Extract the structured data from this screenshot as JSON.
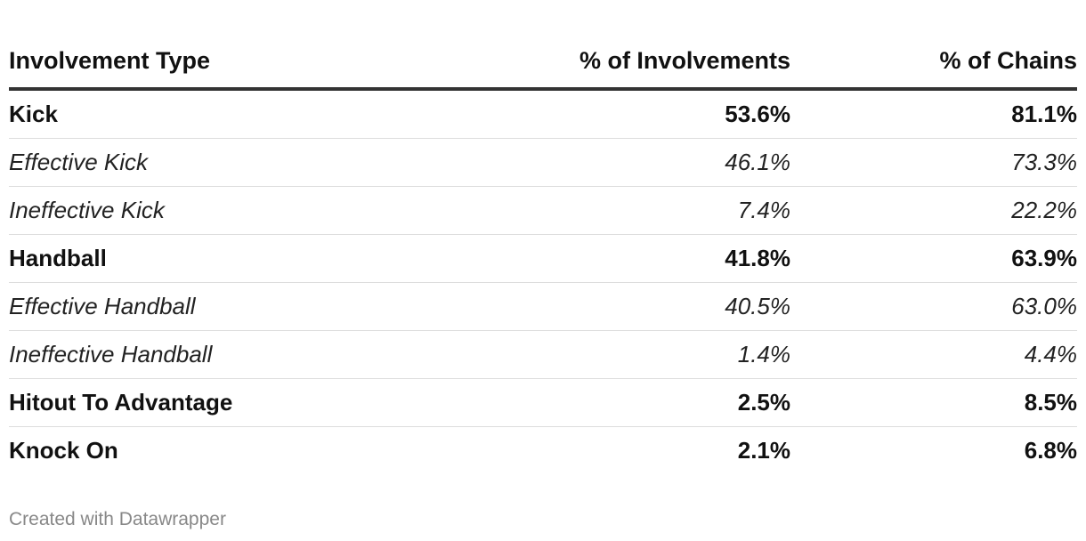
{
  "chart_data": {
    "type": "table",
    "columns": [
      "Involvement Type",
      "% of Involvements",
      "% of Chains"
    ],
    "rows": [
      {
        "type": "Kick",
        "involvements": "53.6%",
        "chains": "81.1%",
        "style": "bold"
      },
      {
        "type": "Effective Kick",
        "involvements": "46.1%",
        "chains": "73.3%",
        "style": "italic"
      },
      {
        "type": "Ineffective Kick",
        "involvements": "7.4%",
        "chains": "22.2%",
        "style": "italic"
      },
      {
        "type": "Handball",
        "involvements": "41.8%",
        "chains": "63.9%",
        "style": "bold"
      },
      {
        "type": "Effective Handball",
        "involvements": "40.5%",
        "chains": "63.0%",
        "style": "italic"
      },
      {
        "type": "Ineffective Handball",
        "involvements": "1.4%",
        "chains": "4.4%",
        "style": "italic"
      },
      {
        "type": "Hitout To Advantage",
        "involvements": "2.5%",
        "chains": "8.5%",
        "style": "bold"
      },
      {
        "type": "Knock On",
        "involvements": "2.1%",
        "chains": "6.8%",
        "style": "bold"
      }
    ]
  },
  "footer": {
    "credit": "Created with Datawrapper"
  }
}
